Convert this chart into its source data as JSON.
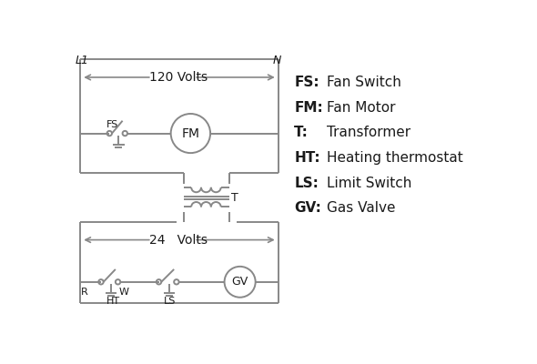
{
  "bg_color": "#ffffff",
  "line_color": "#888888",
  "text_color": "#1a1a1a",
  "legend_items": [
    [
      "FS:",
      "Fan Switch"
    ],
    [
      "FM:",
      "Fan Motor"
    ],
    [
      "T:",
      "Transformer"
    ],
    [
      "HT:",
      "Heating thermostat"
    ],
    [
      "LS:",
      "Limit Switch"
    ],
    [
      "GV:",
      "Gas Valve"
    ]
  ]
}
